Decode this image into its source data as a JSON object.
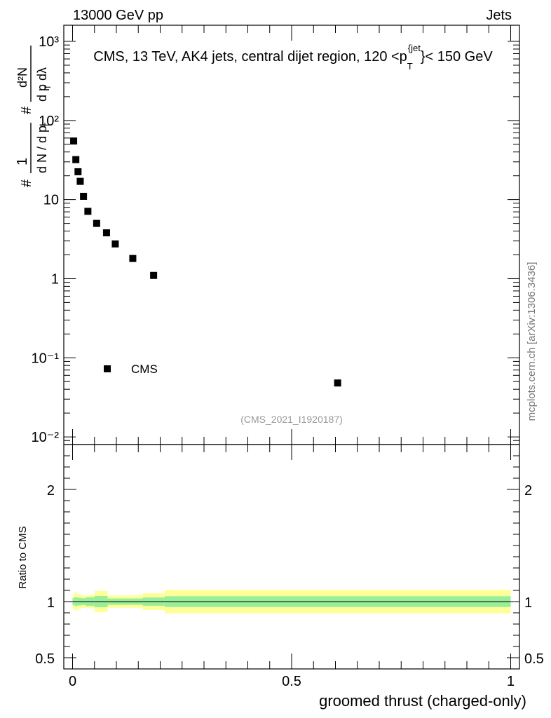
{
  "header": {
    "left": "13000 GeV pp",
    "right": "Jets"
  },
  "watermark": "mcplots.cern.ch [arXiv:1306.3436]",
  "analysis_id": "(CMS_2021_I1920187)",
  "legend": {
    "label": "CMS"
  },
  "colors": {
    "marker": "#000000",
    "band_inner": "#99ee99",
    "band_outer": "#ffff99",
    "ratio_line": "#000000",
    "analysis_text": "#999999",
    "watermark_text": "#777777"
  },
  "chart_data": [
    {
      "type": "scatter",
      "title": "CMS, 13 TeV, AK4 jets, central dijet region, 120 <p_T^{jet}< 150 GeV",
      "title_parts": {
        "pre": "CMS, 13 TeV, AK4 jets, central dijet region, 120 <p",
        "sub": "T",
        "sup": "{jet",
        "post": "}< 150 GeV"
      },
      "ylabel": "1/(dN/dp_T) d²N/(dp_T dλ)",
      "yscale": "log",
      "ylim": [
        0.008,
        1600
      ],
      "xlim": [
        -0.02,
        1.02
      ],
      "y_tick_labels": [
        "10^-2",
        "10^-1",
        "1",
        "10",
        "10^2",
        "10^3"
      ],
      "series": [
        {
          "name": "CMS",
          "x": [
            0.0025,
            0.0075,
            0.0125,
            0.0175,
            0.025,
            0.035,
            0.055,
            0.0775,
            0.0975,
            0.1375,
            0.185,
            0.605
          ],
          "y": [
            55,
            32,
            22.5,
            17,
            11,
            7.1,
            5.0,
            3.8,
            2.75,
            1.8,
            1.1,
            0.048
          ]
        }
      ]
    },
    {
      "type": "area",
      "xlabel": "groomed thrust (charged-only)",
      "ylabel": "Ratio to CMS",
      "ylim": [
        0.4,
        2.4
      ],
      "y_tick_labels": [
        "0.5",
        "1",
        "2"
      ],
      "x_tick_labels": [
        "0",
        "0.5",
        "1"
      ],
      "reference_line": 1,
      "bands": {
        "edges": [
          0,
          0.005,
          0.01,
          0.02,
          0.03,
          0.05,
          0.08,
          0.16,
          0.21,
          1.0
        ],
        "inner": [
          [
            0.968,
            1.032
          ],
          [
            0.958,
            1.042
          ],
          [
            0.965,
            1.035
          ],
          [
            0.97,
            1.03
          ],
          [
            0.962,
            1.038
          ],
          [
            0.95,
            1.05
          ],
          [
            0.972,
            1.028
          ],
          [
            0.963,
            1.037
          ],
          [
            0.952,
            1.048
          ]
        ],
        "outer": [
          [
            0.935,
            1.065
          ],
          [
            0.915,
            1.085
          ],
          [
            0.935,
            1.065
          ],
          [
            0.945,
            1.055
          ],
          [
            0.942,
            1.058
          ],
          [
            0.905,
            1.095
          ],
          [
            0.945,
            1.055
          ],
          [
            0.925,
            1.075
          ],
          [
            0.895,
            1.105
          ]
        ]
      }
    }
  ]
}
